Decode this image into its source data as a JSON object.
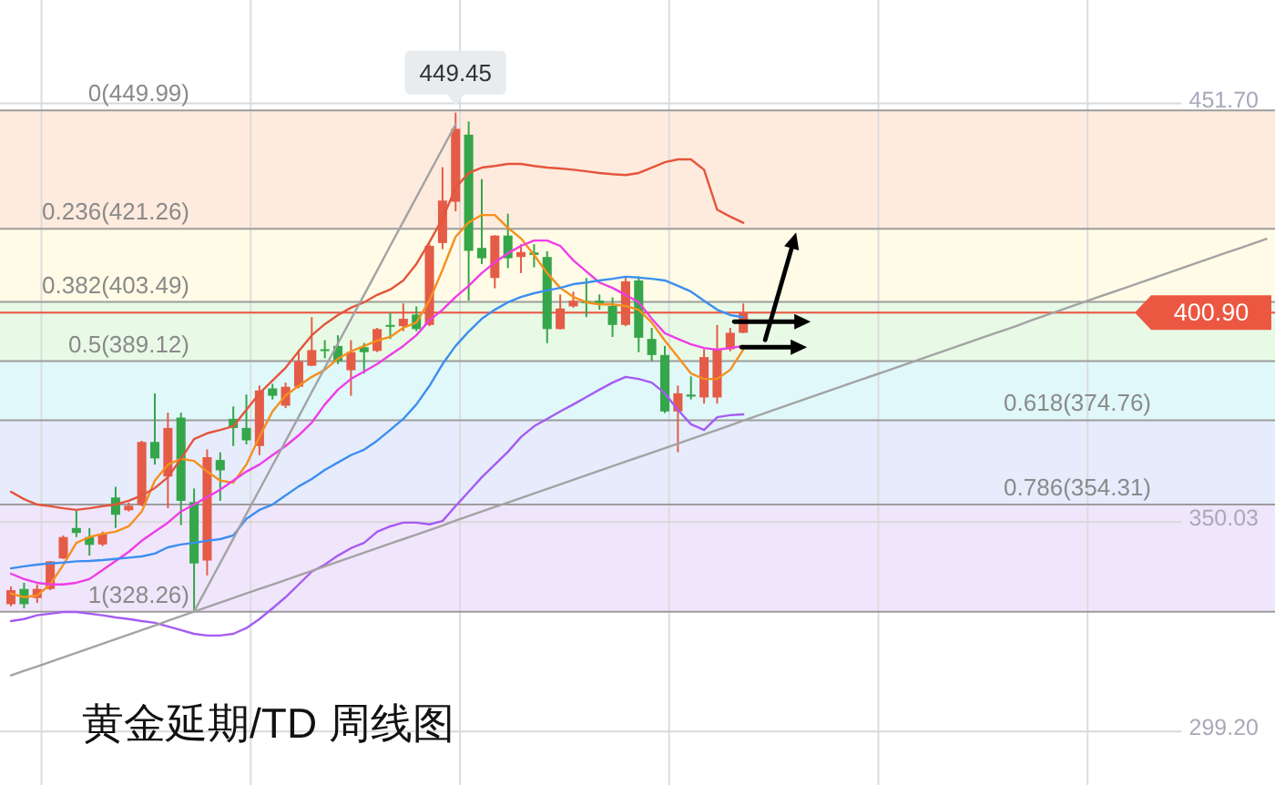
{
  "chart_data": {
    "type": "candlestick",
    "title": "黄金延期/TD 周线图",
    "categories": [
      null,
      null,
      null,
      null,
      null,
      null,
      null,
      null,
      null,
      null,
      null,
      null,
      null,
      null,
      null,
      null,
      null,
      null,
      null,
      null,
      null,
      null,
      null,
      null,
      null,
      null,
      null,
      null,
      null,
      null,
      null,
      null,
      null,
      null,
      null,
      null,
      null,
      null,
      null,
      null,
      null,
      null,
      null,
      null,
      null,
      null,
      null,
      null,
      null,
      null,
      null,
      null,
      null,
      null,
      null,
      null,
      null,
      null,
      null,
      null,
      null,
      null,
      null,
      null,
      null,
      null,
      null,
      null,
      null,
      null,
      null,
      null,
      null,
      null,
      null,
      null,
      null,
      null,
      null,
      null,
      null,
      null,
      null,
      null,
      null,
      null,
      null,
      null,
      null,
      null,
      null,
      null,
      null,
      null,
      null,
      null,
      null
    ],
    "ohlc": [
      [
        330.1,
        334.4,
        329.6,
        333.5
      ],
      [
        333.8,
        335.3,
        329.1,
        330.1
      ],
      [
        331.6,
        334.9,
        330.4,
        333.8
      ],
      [
        333.8,
        340.6,
        333.5,
        340.5
      ],
      [
        341.2,
        346.8,
        341.1,
        346.4
      ],
      [
        348.6,
        353.0,
        346.4,
        347.4
      ],
      [
        346.4,
        348.6,
        341.9,
        344.5
      ],
      [
        344.6,
        347.7,
        344.2,
        347.1
      ],
      [
        356.0,
        358.6,
        348.6,
        351.8
      ],
      [
        352.9,
        354.8,
        352.6,
        354.0
      ],
      [
        354.2,
        369.8,
        353.9,
        369.5
      ],
      [
        369.5,
        381.3,
        364.0,
        365.5
      ],
      [
        361.1,
        376.6,
        353.4,
        372.9
      ],
      [
        375.4,
        376.6,
        349.3,
        355.2
      ],
      [
        354.9,
        358.2,
        328.26,
        340.0
      ],
      [
        340.7,
        367.7,
        337.1,
        365.8
      ],
      [
        365.1,
        367.0,
        355.2,
        362.6
      ],
      [
        375.1,
        378.1,
        368.5,
        372.9
      ],
      [
        372.9,
        381.0,
        368.9,
        369.9
      ],
      [
        368.5,
        383.2,
        366.3,
        382.0
      ],
      [
        382.5,
        383.6,
        379.8,
        380.7
      ],
      [
        378.3,
        383.9,
        377.7,
        382.9
      ],
      [
        382.9,
        391.9,
        382.5,
        389.1
      ],
      [
        388.0,
        399.8,
        387.9,
        391.8
      ],
      [
        392.0,
        394.2,
        389.8,
        391.6
      ],
      [
        392.8,
        395.4,
        388.4,
        389.1
      ],
      [
        386.9,
        394.2,
        380.7,
        391.3
      ],
      [
        392.5,
        393.5,
        386.1,
        391.3
      ],
      [
        391.6,
        397.2,
        391.3,
        396.9
      ],
      [
        397.9,
        400.9,
        394.5,
        397.5
      ],
      [
        397.6,
        403.1,
        396.4,
        399.4
      ],
      [
        400.4,
        402.4,
        396.4,
        396.9
      ],
      [
        397.9,
        417.5,
        397.6,
        417.1
      ],
      [
        417.8,
        436.2,
        416.3,
        428.1
      ],
      [
        427.8,
        449.45,
        425.5,
        445.5
      ],
      [
        444.1,
        447.3,
        403.8,
        415.9
      ],
      [
        416.6,
        433.3,
        412.7,
        414.1
      ],
      [
        409.3,
        419.7,
        406.8,
        419.6
      ],
      [
        419.6,
        424.9,
        411.7,
        414.1
      ],
      [
        414.4,
        417.5,
        410.5,
        415.6
      ],
      [
        415.5,
        417.5,
        411.9,
        414.9
      ],
      [
        414.4,
        415.8,
        393.5,
        396.9
      ],
      [
        396.9,
        405.3,
        396.8,
        401.9
      ],
      [
        402.4,
        406.0,
        402.1,
        403.8
      ],
      [
        403.7,
        409.3,
        399.8,
        403.2
      ],
      [
        403.8,
        405.3,
        401.6,
        403.1
      ],
      [
        402.5,
        404.6,
        395.0,
        397.9
      ],
      [
        397.9,
        409.7,
        397.6,
        408.5
      ],
      [
        408.7,
        409.7,
        391.3,
        394.8
      ],
      [
        394.5,
        397.2,
        389.1,
        390.6
      ],
      [
        390.6,
        392.8,
        376.5,
        376.9
      ],
      [
        376.9,
        383.2,
        367.0,
        381.3
      ],
      [
        381.0,
        385.4,
        379.8,
        380.5
      ],
      [
        380.3,
        392.0,
        378.8,
        390.1
      ],
      [
        380.3,
        397.9,
        378.8,
        392.0
      ],
      [
        392.0,
        397.2,
        391.5,
        396.0
      ],
      [
        396.0,
        403.1,
        395.9,
        400.9
      ],
      null,
      null,
      null,
      null,
      null,
      null,
      null,
      null,
      null,
      null,
      null,
      null,
      null,
      null,
      null,
      null,
      null,
      null,
      null,
      null,
      null,
      null,
      null,
      null,
      null,
      null,
      null,
      null,
      null,
      null,
      null,
      null,
      null,
      null,
      null,
      null,
      null,
      null,
      null,
      null
    ],
    "colors": [
      "#e45c47",
      "#35a649",
      "#e45c47",
      "#e45c47",
      "#e45c47",
      "#35a649",
      "#35a649",
      "#e45c47",
      "#35a649",
      "#e45c47",
      "#e45c47",
      "#35a649",
      "#e45c47",
      "#35a649",
      "#35a649",
      "#e45c47",
      "#35a649",
      "#35a649",
      "#35a649",
      "#e45c47",
      "#35a649",
      "#e45c47",
      "#e45c47",
      "#e45c47",
      "#35a649",
      "#35a649",
      "#e45c47",
      "#35a649",
      "#e45c47",
      "#35a649",
      "#e45c47",
      "#35a649",
      "#e45c47",
      "#e45c47",
      "#e45c47",
      "#35a649",
      "#35a649",
      "#e45c47",
      "#35a649",
      "#e45c47",
      "#35a649",
      "#35a649",
      "#e45c47",
      "#e45c47",
      "#35a649",
      "#35a649",
      "#35a649",
      "#e45c47",
      "#35a649",
      "#35a649",
      "#35a649",
      "#e45c47",
      "#35a649",
      "#e45c47",
      "#e45c47",
      "#e45c47",
      "#e45c47",
      null,
      null,
      null,
      null,
      null,
      null,
      null,
      null,
      null,
      null,
      null,
      null,
      null,
      null,
      null,
      null,
      null,
      null,
      null,
      null,
      null,
      null,
      null,
      null,
      null,
      null,
      null,
      null,
      null,
      null,
      null,
      null,
      null,
      null,
      null,
      null,
      null,
      null,
      null,
      null
    ],
    "series": [
      {
        "type": "line",
        "color": "#f5901f",
        "values": [
          332.7,
          331.8,
          332.2,
          334.9,
          339.7,
          345.0,
          346.4,
          347.2,
          347.7,
          349.0,
          352.6,
          360.1,
          364.0,
          365.4,
          364.9,
          362.3,
          360.1,
          359.6,
          364.0,
          370.7,
          376.9,
          380.8,
          383.1,
          385.3,
          387.0,
          389.7,
          391.5,
          392.8,
          394.1,
          395.0,
          397.2,
          398.5,
          403.8,
          411.3,
          419.3,
          422.8,
          424.6,
          424.6,
          421.5,
          418.9,
          414.9,
          410.5,
          406.9,
          404.7,
          403.4,
          402.9,
          402.9,
          402.5,
          401.6,
          398.5,
          394.1,
          390.1,
          386.1,
          384.8,
          384.8,
          387.0,
          391.9,
          null,
          null,
          null,
          null,
          null,
          null,
          null,
          null,
          null,
          null,
          null,
          null,
          null,
          null,
          null,
          null,
          null,
          null,
          null,
          null,
          null,
          null,
          null,
          null,
          null,
          null,
          null,
          null,
          null,
          null,
          null,
          null,
          null,
          null,
          null,
          null,
          null,
          null,
          null,
          null
        ]
      },
      {
        "type": "line",
        "color": "#f03ce6",
        "values": [
          337.5,
          336.2,
          335.3,
          334.9,
          334.9,
          335.3,
          336.2,
          338.4,
          340.6,
          342.8,
          345.5,
          347.7,
          349.9,
          352.6,
          354.3,
          356.1,
          357.9,
          360.1,
          362.3,
          364.0,
          366.3,
          368.5,
          371.1,
          374.2,
          378.6,
          382.2,
          384.8,
          386.6,
          388.4,
          390.6,
          392.8,
          395.4,
          399.0,
          401.6,
          404.7,
          407.4,
          410.5,
          413.1,
          415.3,
          417.1,
          418.4,
          418.4,
          417.1,
          413.6,
          410.9,
          408.2,
          406.9,
          405.2,
          403.4,
          399.4,
          395.9,
          394.5,
          393.2,
          392.3,
          391.9,
          392.3,
          392.8,
          null,
          null,
          null,
          null,
          null,
          null,
          null,
          null,
          null,
          null,
          null,
          null,
          null,
          null,
          null,
          null,
          null,
          null,
          null,
          null,
          null,
          null,
          null,
          null,
          null,
          null,
          null,
          null,
          null,
          null,
          null,
          null,
          null,
          null,
          null,
          null,
          null,
          null,
          null,
          null
        ]
      },
      {
        "type": "line",
        "color": "#3d8ef0",
        "values": [
          338.8,
          339.3,
          339.7,
          340.0,
          340.2,
          340.5,
          340.6,
          340.8,
          341.1,
          341.4,
          341.7,
          342.4,
          343.9,
          344.6,
          345.0,
          345.5,
          345.9,
          346.8,
          350.8,
          353.0,
          354.3,
          356.5,
          358.7,
          360.5,
          362.7,
          364.5,
          366.3,
          367.6,
          369.8,
          372.4,
          375.1,
          378.6,
          383.1,
          388.4,
          392.8,
          396.3,
          399.4,
          401.6,
          403.4,
          404.7,
          405.6,
          406.3,
          406.9,
          407.8,
          408.2,
          408.7,
          409.1,
          409.6,
          409.4,
          409.1,
          408.7,
          407.4,
          406.0,
          403.8,
          401.6,
          400.3,
          399.8,
          null,
          null,
          null,
          null,
          null,
          null,
          null,
          null,
          null,
          null,
          null,
          null,
          null,
          null,
          null,
          null,
          null,
          null,
          null,
          null,
          null,
          null,
          null,
          null,
          null,
          null,
          null,
          null,
          null,
          null,
          null,
          null,
          null,
          null,
          null,
          null,
          null,
          null,
          null,
          null
        ]
      },
      {
        "type": "line",
        "color": "#e4553c",
        "values": [
          357.4,
          355.6,
          354.3,
          353.9,
          353.4,
          353.0,
          353.4,
          353.9,
          354.3,
          355.2,
          356.5,
          358.3,
          360.9,
          365.4,
          370.2,
          371.6,
          372.4,
          373.3,
          377.3,
          381.3,
          384.4,
          387.5,
          391.5,
          395.4,
          398.1,
          400.3,
          402.1,
          403.4,
          405.2,
          406.5,
          408.7,
          412.7,
          418.0,
          423.7,
          431.2,
          434.8,
          436.1,
          436.5,
          437.0,
          437.0,
          436.5,
          436.1,
          435.9,
          435.6,
          435.2,
          434.8,
          434.5,
          434.3,
          434.8,
          436.1,
          437.4,
          438.1,
          438.1,
          435.6,
          425.9,
          424.2,
          422.7,
          null,
          null,
          null,
          null,
          null,
          null,
          null,
          null,
          null,
          null,
          null,
          null,
          null,
          null,
          null,
          null,
          null,
          null,
          null,
          null,
          null,
          null,
          null,
          null,
          null,
          null,
          null,
          null,
          null,
          null,
          null,
          null,
          null,
          null,
          null,
          null,
          null,
          null,
          null,
          null
        ]
      },
      {
        "type": "line",
        "color": "#a55cf2",
        "values": [
          326.0,
          326.5,
          327.4,
          327.8,
          328.2,
          328.2,
          327.8,
          327.4,
          326.9,
          326.5,
          326.0,
          325.6,
          324.7,
          323.8,
          322.9,
          322.5,
          322.5,
          322.9,
          324.3,
          326.5,
          329.1,
          331.8,
          334.9,
          338.0,
          339.7,
          341.9,
          343.7,
          345.0,
          347.7,
          349.0,
          349.9,
          349.9,
          349.5,
          350.3,
          353.9,
          357.4,
          360.9,
          364.0,
          367.1,
          370.7,
          373.3,
          375.1,
          376.9,
          378.6,
          380.4,
          382.2,
          383.9,
          385.3,
          384.8,
          383.9,
          381.3,
          377.3,
          373.8,
          372.4,
          375.5,
          376.0,
          376.2,
          null,
          null,
          null,
          null,
          null,
          null,
          null,
          null,
          null,
          null,
          null,
          null,
          null,
          null,
          null,
          null,
          null,
          null,
          null,
          null,
          null,
          null,
          null,
          null,
          null,
          null,
          null,
          null,
          null,
          null,
          null,
          null,
          null,
          null,
          null,
          null,
          null,
          null,
          null,
          null
        ]
      },
      {
        "type": "line",
        "color": "#a3a3a3",
        "values": [
          null,
          null,
          null,
          null,
          null,
          null,
          null,
          null,
          null,
          null,
          null,
          null,
          null,
          null,
          328.3,
          334.2,
          340.1,
          346.0,
          352.0,
          357.9,
          363.8,
          369.7,
          375.6,
          381.6,
          387.5,
          393.4,
          399.3,
          405.2,
          411.1,
          417.1,
          423.0,
          428.9,
          434.8,
          440.7,
          446.6,
          null,
          null,
          null,
          null,
          null,
          null,
          null,
          null,
          null,
          null,
          null,
          null,
          null,
          null,
          null,
          null,
          null,
          null,
          null,
          null,
          null,
          null,
          null,
          null,
          null,
          null,
          null,
          null,
          null,
          null,
          null,
          null,
          null,
          null,
          null,
          null,
          null,
          null,
          null,
          null,
          null,
          null,
          null,
          null,
          null,
          null,
          null,
          null,
          null,
          null,
          null,
          null,
          null,
          null,
          null,
          null,
          null,
          null,
          null,
          null,
          null,
          null
        ]
      },
      {
        "type": "line",
        "color": "#a3a3a3",
        "values": [
          312.8,
          313.9,
          315.0,
          316.1,
          317.2,
          318.3,
          319.4,
          320.5,
          321.6,
          322.7,
          323.8,
          324.9,
          326.1,
          327.2,
          328.3,
          329.4,
          330.5,
          331.6,
          332.7,
          333.8,
          334.9,
          336.0,
          337.1,
          338.2,
          339.3,
          340.4,
          341.5,
          342.6,
          343.7,
          344.8,
          345.9,
          347.0,
          348.1,
          349.2,
          350.4,
          351.5,
          352.6,
          353.7,
          354.8,
          355.9,
          357.0,
          358.1,
          359.2,
          360.3,
          361.4,
          362.5,
          363.6,
          364.7,
          365.8,
          366.9,
          368.0,
          369.1,
          370.2,
          371.3,
          372.4,
          373.5,
          374.7,
          375.8,
          376.9,
          378.0,
          379.1,
          380.2,
          381.3,
          382.4,
          383.5,
          384.6,
          385.7,
          386.8,
          387.9,
          389.0,
          390.1,
          391.2,
          392.3,
          393.4,
          394.5,
          395.6,
          396.7,
          397.8,
          399.0,
          400.1,
          401.2,
          402.3,
          403.4,
          404.5,
          405.6,
          406.7,
          407.8,
          408.9,
          410.0,
          411.1,
          412.2,
          413.3,
          414.4,
          415.5,
          416.6,
          417.7,
          418.8
        ]
      }
    ],
    "ylim": [
      286.2,
      476.8
    ],
    "yticks": [
      {
        "value": 451.7,
        "label": "451.70"
      },
      {
        "value": 400.87,
        "label": null
      },
      350.03,
      {
        "value": 299.2,
        "label": "299.20"
      }
    ],
    "tick_labels": "y",
    "grid": true,
    "bands": [
      {
        "axis": "y",
        "from": 421.26,
        "to": 449.99,
        "color": "#feebde"
      },
      {
        "axis": "y",
        "from": 403.49,
        "to": 421.26,
        "color": "#fffbe6"
      },
      {
        "axis": "y",
        "from": 389.12,
        "to": 403.49,
        "color": "#e8fae6"
      },
      {
        "axis": "y",
        "from": 374.76,
        "to": 389.12,
        "color": "#e0f8fa"
      },
      {
        "axis": "y",
        "from": 354.31,
        "to": 374.76,
        "color": "#e6ecfc"
      },
      {
        "axis": "y",
        "from": 328.26,
        "to": 354.31,
        "color": "#f0e6fc"
      }
    ],
    "ref_lines": [
      {
        "axis": "y",
        "value": 449.99,
        "label": "0(449.99)",
        "color": "#9c9c9c"
      },
      {
        "axis": "y",
        "value": 421.26,
        "label": "0.236(421.26)",
        "color": "#9c9c9c"
      },
      {
        "axis": "y",
        "value": 403.49,
        "label": "0.382(403.49)",
        "color": "#9c9c9c"
      },
      {
        "axis": "y",
        "value": 389.12,
        "label": "0.5(389.12)",
        "color": "#9c9c9c"
      },
      {
        "axis": "y",
        "value": 374.76,
        "label": "0.618(374.76)",
        "color": "#9c9c9c"
      },
      {
        "axis": "y",
        "value": 354.31,
        "label": "0.786(354.31)",
        "color": "#9c9c9c"
      },
      {
        "axis": "y",
        "value": 328.26,
        "label": "1(328.26)",
        "color": "#9c9c9c"
      },
      {
        "axis": "y",
        "value": 400.9,
        "label": "400.90",
        "color": "#ec5741"
      }
    ],
    "annotations": [
      {
        "text": "449.45",
        "y": 449.45
      }
    ]
  }
}
